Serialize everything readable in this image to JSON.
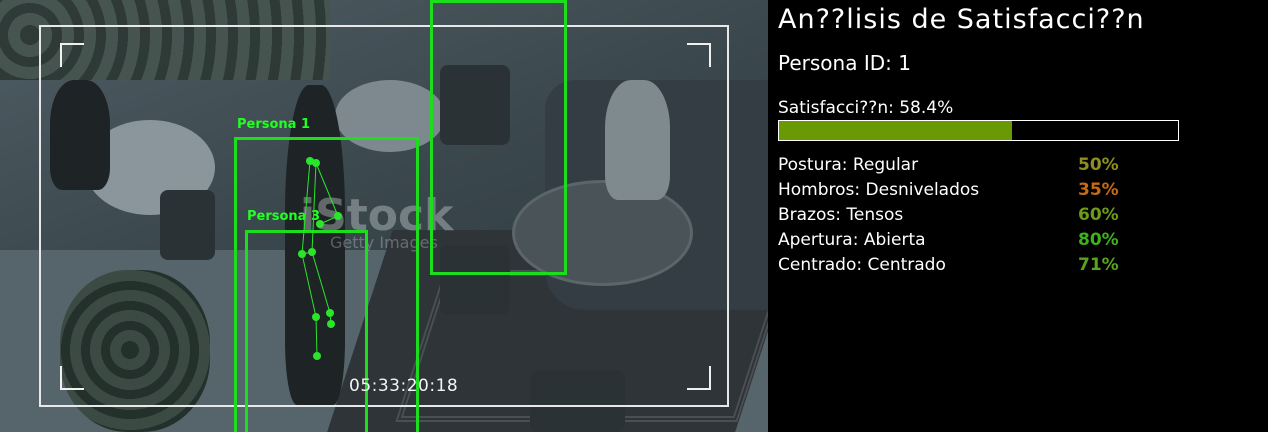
{
  "panel": {
    "title": "An??lisis de Satisfacci??n",
    "person_id": "Persona ID: 1",
    "satisfaction_label": "Satisfacci??n: 58.4%",
    "satisfaction_fraction": 0.584,
    "bar_color": "#699a06",
    "metrics": [
      {
        "label": "Postura: Regular",
        "value": "50%",
        "color": "#8f8f1f"
      },
      {
        "label": "Hombros: Desnivelados",
        "value": "35%",
        "color": "#c86a12"
      },
      {
        "label": "Brazos: Tensos",
        "value": "60%",
        "color": "#6e9a1a"
      },
      {
        "label": "Apertura: Abierta",
        "value": "80%",
        "color": "#3cb21c"
      },
      {
        "label": "Centrado: Centrado",
        "value": "71%",
        "color": "#58a41c"
      }
    ]
  },
  "feed": {
    "detections": [
      {
        "label": "Persona 1",
        "color": "#1cde1c"
      },
      {
        "label": "Persona 3",
        "color": "#1cde1c"
      }
    ],
    "timestamp": "05:33:20:18",
    "watermark": "iStock",
    "watermark_sub": "Getty Images"
  }
}
